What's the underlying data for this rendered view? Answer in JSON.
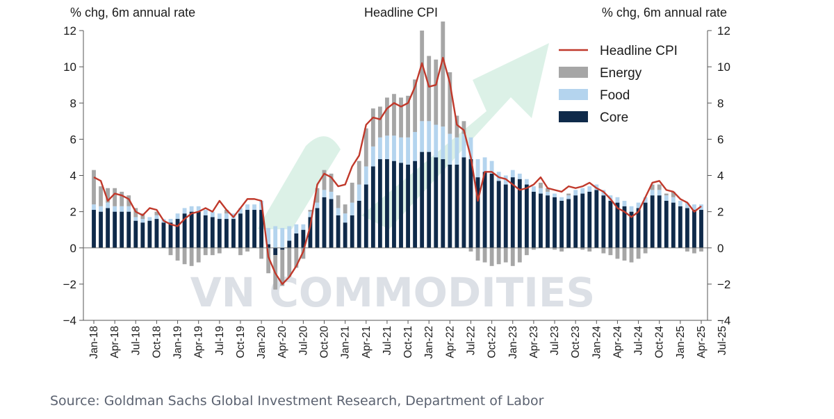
{
  "chart_data": {
    "type": "bar",
    "title": "Headline CPI",
    "ylabel_left": "% chg, 6m annual rate",
    "ylabel_right": "% chg, 6m annual rate",
    "ylim": [
      -4,
      12
    ],
    "yticks": [
      -4,
      -2,
      0,
      2,
      4,
      6,
      8,
      10,
      12
    ],
    "grid": false,
    "legend_position": "top-right",
    "x_ticks": [
      "Jan-18",
      "Apr-18",
      "Jul-18",
      "Oct-18",
      "Jan-19",
      "Apr-19",
      "Jul-19",
      "Oct-19",
      "Jan-20",
      "Apr-20",
      "Jul-20",
      "Oct-20",
      "Jan-21",
      "Apr-21",
      "Jul-21",
      "Oct-21",
      "Jan-22",
      "Apr-22",
      "Jul-22",
      "Oct-22",
      "Jan-23",
      "Apr-23",
      "Jul-23",
      "Oct-23",
      "Jan-24",
      "Apr-24",
      "Jul-24",
      "Oct-24",
      "Jan-25",
      "Apr-25",
      "Jul-25"
    ],
    "series": [
      {
        "name": "Headline CPI",
        "type": "line",
        "color": "#c0392b",
        "values": [
          3.9,
          3.7,
          2.6,
          3.0,
          2.9,
          2.7,
          2.0,
          1.8,
          2.2,
          2.1,
          1.5,
          1.3,
          1.2,
          1.6,
          1.9,
          2.0,
          2.2,
          2.0,
          2.6,
          2.1,
          1.7,
          2.2,
          2.7,
          2.7,
          2.6,
          -0.5,
          -1.4,
          -2.0,
          -1.6,
          -1.0,
          -0.2,
          1.2,
          3.5,
          4.1,
          3.9,
          3.4,
          3.5,
          4.5,
          5.1,
          6.8,
          7.2,
          7.1,
          7.7,
          8.0,
          7.8,
          8.0,
          8.9,
          10.2,
          8.9,
          9.0,
          10.5,
          9.1,
          6.8,
          6.5,
          5.0,
          2.6,
          4.2,
          4.2,
          3.9,
          3.8,
          3.5,
          3.2,
          3.3,
          3.5,
          3.9,
          3.3,
          3.2,
          3.1,
          3.4,
          3.3,
          3.4,
          3.6,
          3.3,
          3.1,
          2.7,
          2.2,
          2.0,
          1.7,
          2.0,
          2.8,
          3.6,
          3.7,
          3.2,
          3.1,
          2.7,
          2.5,
          2.0,
          2.3
        ]
      },
      {
        "name": "Energy",
        "type": "bar",
        "color": "#a6a6a6",
        "values": [
          1.9,
          1.1,
          0.8,
          1.0,
          0.8,
          0.6,
          0.5,
          0.3,
          0.0,
          0.2,
          0.0,
          -0.4,
          -0.7,
          -0.9,
          -1.0,
          -0.8,
          -0.4,
          -0.4,
          -0.3,
          0.2,
          0.0,
          -0.4,
          -0.2,
          0.0,
          -0.6,
          -1.4,
          -1.9,
          -2.0,
          -1.6,
          -1.1,
          -0.6,
          0.1,
          0.8,
          1.1,
          1.0,
          0.7,
          0.5,
          1.1,
          1.3,
          2.1,
          2.1,
          1.7,
          2.1,
          2.3,
          2.2,
          2.3,
          2.9,
          5.0,
          3.6,
          3.6,
          5.8,
          3.4,
          1.2,
          0.7,
          -0.2,
          -0.7,
          -0.8,
          -1.0,
          -0.9,
          -0.8,
          -1.0,
          -0.8,
          -0.4,
          -0.1,
          0.3,
          0.2,
          -0.1,
          -0.2,
          0.1,
          0.0,
          -0.1,
          -0.2,
          0.0,
          -0.3,
          -0.4,
          -0.6,
          -0.7,
          -0.8,
          -0.6,
          -0.3,
          0.3,
          0.3,
          0.1,
          0.3,
          0.0,
          -0.2,
          -0.3,
          -0.2
        ]
      },
      {
        "name": "Food",
        "type": "bar",
        "color": "#b4d4ee",
        "values": [
          0.3,
          0.3,
          0.3,
          0.3,
          0.3,
          0.3,
          0.2,
          0.2,
          0.2,
          0.2,
          0.2,
          0.2,
          0.3,
          0.3,
          0.3,
          0.3,
          0.3,
          0.3,
          0.3,
          0.3,
          0.3,
          0.3,
          0.3,
          0.3,
          0.5,
          0.9,
          1.2,
          1.1,
          0.8,
          0.5,
          0.3,
          0.3,
          0.3,
          0.4,
          0.4,
          0.4,
          0.5,
          0.7,
          0.9,
          1.0,
          1.1,
          1.2,
          1.3,
          1.4,
          1.4,
          1.5,
          1.6,
          1.7,
          1.7,
          1.8,
          1.8,
          1.7,
          1.5,
          1.3,
          1.2,
          1.0,
          0.8,
          0.7,
          0.5,
          0.5,
          0.4,
          0.3,
          0.3,
          0.3,
          0.3,
          0.2,
          0.2,
          0.2,
          0.2,
          0.3,
          0.3,
          0.3,
          0.3,
          0.3,
          0.3,
          0.3,
          0.3,
          0.3,
          0.3,
          0.3,
          0.3,
          0.3,
          0.3,
          0.3,
          0.3,
          0.3,
          0.3,
          0.3
        ]
      },
      {
        "name": "Core",
        "type": "bar",
        "color": "#0f2a4a",
        "values": [
          2.1,
          2.0,
          2.2,
          2.0,
          2.0,
          2.0,
          1.5,
          1.4,
          1.5,
          1.6,
          1.4,
          1.4,
          1.6,
          1.9,
          2.0,
          2.0,
          1.8,
          1.7,
          1.6,
          1.6,
          1.6,
          1.9,
          2.1,
          2.1,
          2.1,
          0.2,
          -0.4,
          -0.1,
          0.4,
          0.8,
          1.0,
          1.7,
          2.2,
          2.8,
          2.7,
          1.8,
          1.4,
          1.8,
          2.6,
          3.5,
          4.5,
          4.9,
          4.9,
          4.8,
          4.7,
          4.6,
          4.8,
          5.3,
          5.3,
          5.0,
          4.9,
          4.6,
          4.6,
          5.0,
          4.9,
          3.9,
          4.2,
          4.1,
          3.7,
          3.5,
          3.9,
          3.8,
          3.5,
          3.1,
          3.0,
          2.9,
          2.8,
          2.6,
          2.7,
          2.9,
          3.0,
          3.1,
          3.2,
          2.9,
          2.6,
          2.5,
          2.3,
          2.0,
          2.2,
          2.5,
          2.9,
          2.9,
          2.6,
          2.5,
          2.3,
          2.2,
          2.1,
          2.1
        ]
      }
    ]
  },
  "legend": [
    {
      "name": "Headline CPI",
      "symbol": "line",
      "color": "#c0392b"
    },
    {
      "name": "Energy",
      "symbol": "box",
      "color": "#a6a6a6"
    },
    {
      "name": "Food",
      "symbol": "box",
      "color": "#b4d4ee"
    },
    {
      "name": "Core",
      "symbol": "box",
      "color": "#0f2a4a"
    }
  ],
  "watermark": {
    "text": "VN COMMODITIES",
    "arrow_color": "#bfe6d4"
  },
  "source": "Source: Goldman Sachs Global Investment Research, Department of Labor"
}
